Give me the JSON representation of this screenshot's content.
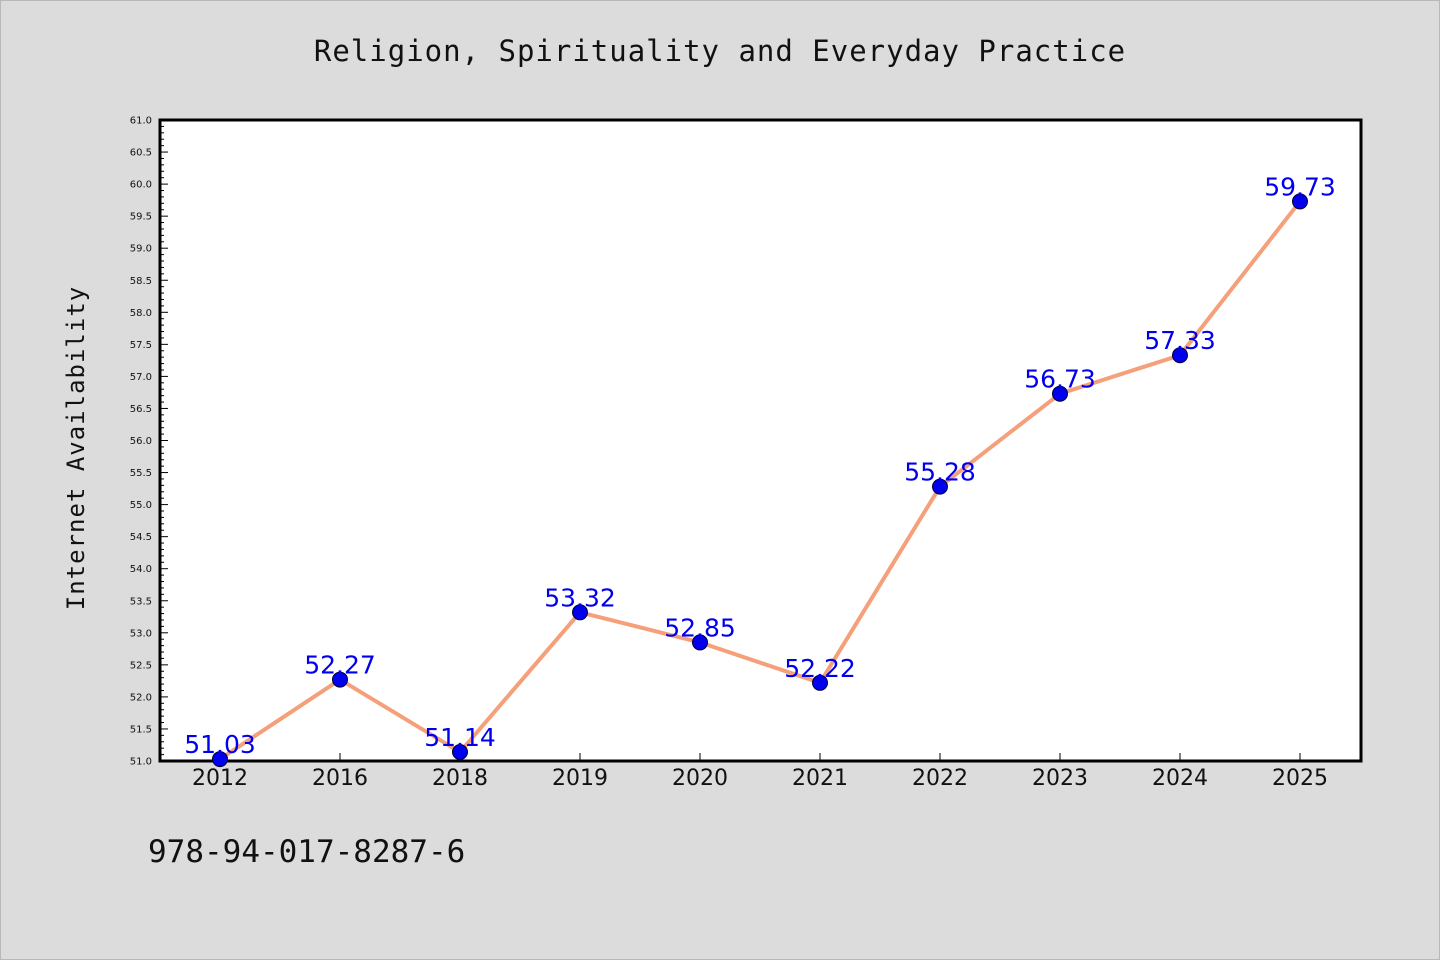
{
  "chart_data": {
    "type": "line",
    "title": "Religion, Spirituality and Everyday Practice",
    "xlabel": "",
    "ylabel": "Internet Availability",
    "categories": [
      "2012",
      "2016",
      "2018",
      "2019",
      "2020",
      "2021",
      "2022",
      "2023",
      "2024",
      "2025"
    ],
    "series": [
      {
        "values": [
          51.03,
          52.27,
          51.14,
          53.32,
          52.85,
          52.22,
          55.28,
          56.73,
          57.33,
          59.73
        ],
        "line_color": "#f5a07a",
        "marker_color": "#0000ee"
      }
    ],
    "data_labels": [
      "51.03",
      "52.27",
      "51.14",
      "53.32",
      "52.85",
      "52.22",
      "55.28",
      "56.73",
      "57.33",
      "59.73"
    ],
    "ylim": [
      51.0,
      61.0
    ],
    "yticks": [
      "51.0",
      "51.5",
      "52.0",
      "52.5",
      "53.0",
      "53.5",
      "54.0",
      "54.5",
      "55.0",
      "55.5",
      "56.0",
      "56.5",
      "57.0",
      "57.5",
      "58.0",
      "58.5",
      "59.0",
      "59.5",
      "60.0",
      "60.5",
      "61.0"
    ],
    "grid": false,
    "label_color": "#0000ee"
  },
  "footer": {
    "isbn": "978-94-017-8287-6"
  }
}
